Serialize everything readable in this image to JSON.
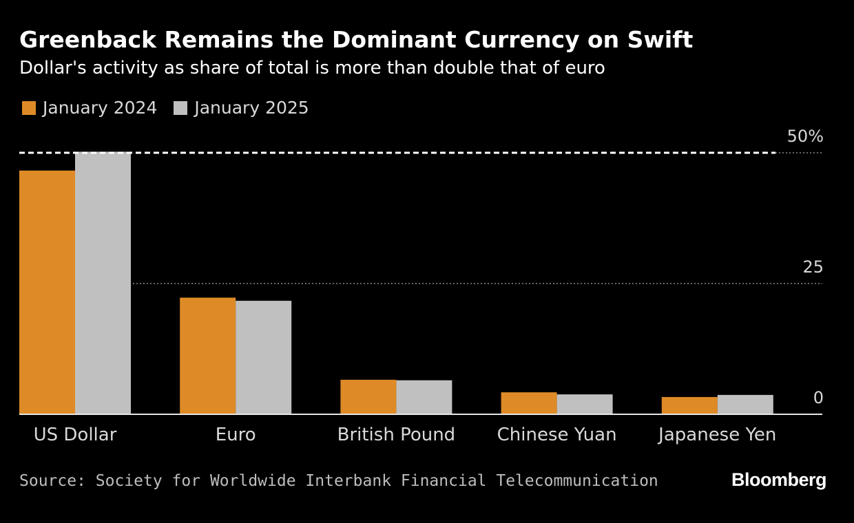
{
  "header": {
    "title": "Greenback Remains the Dominant Currency on Swift",
    "subtitle": "Dollar's activity as share of total is more than double that of euro"
  },
  "legend": {
    "series_2024": "January 2024",
    "series_2025": "January 2025"
  },
  "colors": {
    "background": "#000000",
    "series_2024": "#de8b27",
    "series_2025": "#c0c0c0",
    "gridline": "#8a8a8a",
    "reference_line": "#ffffff"
  },
  "footer": {
    "source": "Source: Society for Worldwide Interbank Financial Telecommunication",
    "brand": "Bloomberg"
  },
  "chart_data": {
    "type": "bar",
    "title": "Greenback Remains the Dominant Currency on Swift",
    "subtitle": "Dollar's activity as share of total is more than double that of euro",
    "categories": [
      "US Dollar",
      "Euro",
      "British Pound",
      "Chinese Yuan",
      "Japanese Yen"
    ],
    "series": [
      {
        "name": "January 2024",
        "values": [
          46.6,
          22.3,
          6.6,
          4.2,
          3.3
        ]
      },
      {
        "name": "January 2025",
        "values": [
          50.2,
          21.7,
          6.5,
          3.8,
          3.7
        ]
      }
    ],
    "ylim": [
      0,
      50
    ],
    "yticks": [
      0,
      25,
      50
    ],
    "ytick_labels": [
      "0",
      "25",
      "50%"
    ],
    "y_axis_side": "right",
    "reference_line": {
      "value": 50,
      "style": "dashed"
    },
    "grid": true,
    "legend_position": "top-left",
    "xlabel": "",
    "ylabel": ""
  }
}
